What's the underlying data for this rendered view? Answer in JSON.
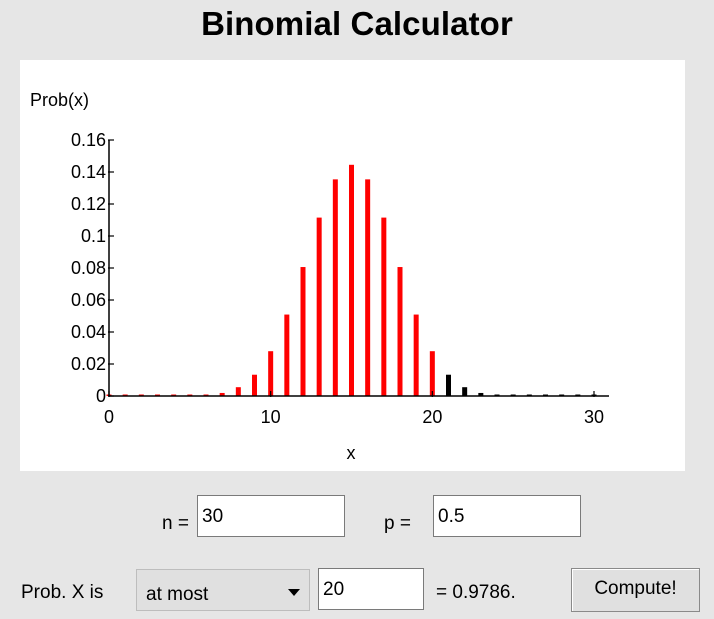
{
  "app": {
    "title": "Binomial Calculator"
  },
  "chart_data": {
    "type": "bar",
    "title": "",
    "xlabel": "x",
    "ylabel": "Prob(x)",
    "x": [
      0,
      1,
      2,
      3,
      4,
      5,
      6,
      7,
      8,
      9,
      10,
      11,
      12,
      13,
      14,
      15,
      16,
      17,
      18,
      19,
      20,
      21,
      22,
      23,
      24,
      25,
      26,
      27,
      28,
      29,
      30
    ],
    "values": [
      0.0001,
      0.0001,
      0.0001,
      0.0001,
      0.0002,
      0.0002,
      0.0004,
      0.0019,
      0.0055,
      0.0133,
      0.028,
      0.0509,
      0.0806,
      0.1115,
      0.1354,
      0.1445,
      0.1354,
      0.1115,
      0.0806,
      0.0509,
      0.028,
      0.0133,
      0.0055,
      0.0019,
      0.0006,
      0.0002,
      0.0001,
      0.0001,
      0.0001,
      0.0001,
      0.0001
    ],
    "highlight_max_x": 20,
    "colors": {
      "highlight": "#ff0000",
      "rest": "#000000"
    },
    "xlim": [
      0,
      30
    ],
    "ylim": [
      0,
      0.16
    ],
    "xticks": [
      0,
      10,
      20,
      30
    ],
    "xtick_labels": [
      "0",
      "10",
      "20",
      "30"
    ],
    "yticks": [
      0,
      0.02,
      0.04,
      0.06,
      0.08,
      0.1,
      0.12,
      0.14,
      0.16
    ],
    "ytick_labels": [
      "0",
      "0.02",
      "0.04",
      "0.06",
      "0.08",
      "0.1",
      "0.12",
      "0.14",
      "0.16"
    ],
    "grid": false
  },
  "params": {
    "n_label": "n =",
    "n_value": "30",
    "p_label": "p =",
    "p_value": "0.5"
  },
  "calc": {
    "prob_label": "Prob. X is",
    "mode_selected": "at most",
    "x_value": "20",
    "result_text": "= 0.9786.",
    "compute_label": "Compute!"
  }
}
